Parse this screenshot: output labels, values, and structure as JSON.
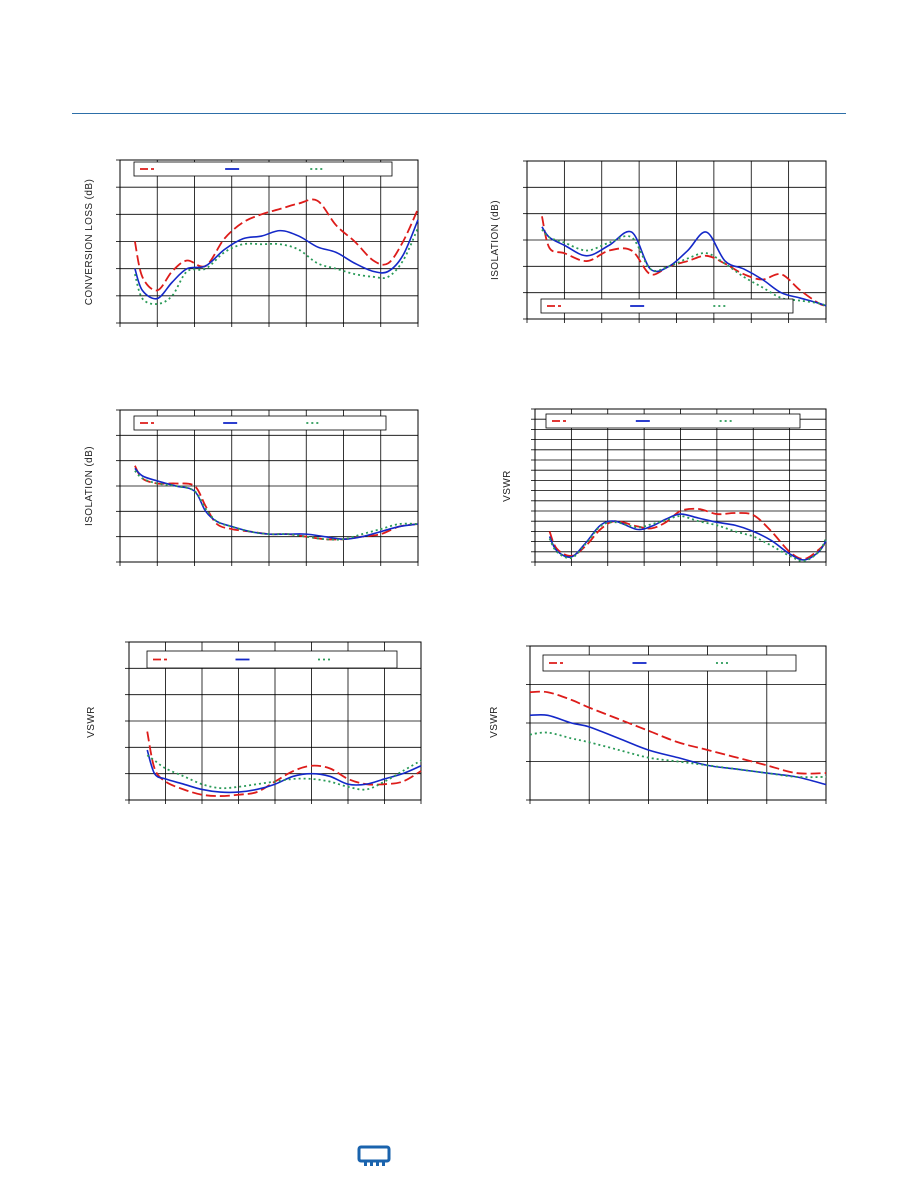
{
  "colors": {
    "series1": "#dd1c1a",
    "series2": "#1428c8",
    "series3": "#2a9a58",
    "rule": "#2d6fa8",
    "grid": "#000000"
  },
  "logo": {
    "icon": "chip-logo-icon",
    "color": "#1a63ad"
  },
  "chart_data": [
    {
      "type": "line",
      "id": "chart1",
      "ylabel": "CONVERSION LOSS (dB)",
      "xlim": [
        0,
        8
      ],
      "ylim": [
        0,
        6
      ],
      "legend": "top",
      "series": [
        {
          "style": "dashed",
          "color": "series1",
          "x": [
            0.4,
            0.6,
            1.0,
            1.4,
            1.8,
            2.3,
            2.8,
            3.3,
            3.8,
            4.3,
            4.8,
            5.3,
            5.8,
            6.3,
            6.8,
            7.2,
            7.6,
            8.0
          ],
          "y": [
            3.0,
            1.7,
            1.2,
            1.9,
            2.3,
            2.1,
            3.1,
            3.7,
            4.0,
            4.2,
            4.4,
            4.5,
            3.6,
            3.0,
            2.3,
            2.2,
            3.0,
            4.2
          ]
        },
        {
          "style": "solid",
          "color": "series2",
          "x": [
            0.4,
            0.6,
            1.0,
            1.4,
            1.8,
            2.3,
            2.8,
            3.3,
            3.8,
            4.3,
            4.8,
            5.3,
            5.8,
            6.3,
            6.8,
            7.2,
            7.6,
            8.0
          ],
          "y": [
            2.0,
            1.2,
            0.9,
            1.5,
            2.0,
            2.1,
            2.7,
            3.1,
            3.2,
            3.4,
            3.2,
            2.8,
            2.6,
            2.2,
            1.9,
            1.9,
            2.5,
            3.8
          ]
        },
        {
          "style": "dotted",
          "color": "series3",
          "x": [
            0.4,
            0.6,
            1.0,
            1.4,
            1.8,
            2.3,
            2.8,
            3.3,
            3.8,
            4.3,
            4.8,
            5.3,
            5.8,
            6.3,
            6.8,
            7.2,
            7.6,
            8.0
          ],
          "y": [
            1.8,
            0.9,
            0.7,
            1.0,
            1.9,
            2.0,
            2.6,
            2.9,
            2.9,
            2.9,
            2.7,
            2.2,
            2.0,
            1.8,
            1.7,
            1.7,
            2.3,
            3.5
          ]
        }
      ]
    },
    {
      "type": "line",
      "id": "chart2",
      "ylabel": "ISOLATION (dB)",
      "xlim": [
        0,
        8
      ],
      "ylim": [
        0,
        6
      ],
      "legend": "bottom",
      "series": [
        {
          "style": "dashed",
          "color": "series1",
          "x": [
            0.4,
            0.6,
            1.0,
            1.6,
            2.2,
            2.8,
            3.3,
            3.8,
            4.3,
            4.8,
            5.3,
            5.8,
            6.3,
            6.8,
            7.3,
            7.8,
            8.0
          ],
          "y": [
            3.9,
            2.7,
            2.5,
            2.2,
            2.6,
            2.6,
            1.7,
            2.0,
            2.2,
            2.4,
            2.1,
            1.7,
            1.5,
            1.7,
            1.1,
            0.6,
            0.5
          ]
        },
        {
          "style": "solid",
          "color": "series2",
          "x": [
            0.4,
            0.6,
            1.0,
            1.6,
            2.2,
            2.8,
            3.3,
            3.8,
            4.3,
            4.8,
            5.3,
            5.8,
            6.3,
            6.8,
            7.3,
            7.8,
            8.0
          ],
          "y": [
            3.5,
            3.1,
            2.8,
            2.4,
            2.8,
            3.3,
            1.9,
            2.0,
            2.6,
            3.3,
            2.2,
            1.9,
            1.5,
            1.0,
            0.8,
            0.6,
            0.5
          ]
        },
        {
          "style": "dotted",
          "color": "series3",
          "x": [
            0.4,
            0.6,
            1.0,
            1.6,
            2.2,
            2.8,
            3.3,
            3.8,
            4.3,
            4.8,
            5.3,
            5.8,
            6.3,
            6.8,
            7.3,
            7.8,
            8.0
          ],
          "y": [
            3.4,
            3.1,
            2.9,
            2.6,
            2.9,
            3.1,
            1.9,
            2.0,
            2.3,
            2.5,
            2.1,
            1.6,
            1.2,
            0.8,
            0.7,
            0.6,
            0.5
          ]
        }
      ]
    },
    {
      "type": "line",
      "id": "chart3",
      "ylabel": "ISOLATION (dB)",
      "xlim": [
        0,
        8
      ],
      "ylim": [
        0,
        6
      ],
      "legend": "top",
      "series": [
        {
          "style": "dashed",
          "color": "series1",
          "x": [
            0.4,
            0.6,
            1.0,
            1.5,
            2.0,
            2.3,
            2.6,
            3.0,
            3.5,
            4.0,
            4.5,
            5.0,
            5.5,
            6.0,
            6.5,
            7.0,
            7.5,
            8.0
          ],
          "y": [
            3.8,
            3.3,
            3.1,
            3.1,
            3.0,
            2.2,
            1.5,
            1.3,
            1.2,
            1.1,
            1.1,
            1.0,
            0.9,
            0.9,
            1.0,
            1.1,
            1.4,
            1.5
          ]
        },
        {
          "style": "solid",
          "color": "series2",
          "x": [
            0.4,
            0.6,
            1.0,
            1.5,
            2.0,
            2.3,
            2.6,
            3.0,
            3.5,
            4.0,
            4.5,
            5.0,
            5.5,
            6.0,
            6.5,
            7.0,
            7.5,
            8.0
          ],
          "y": [
            3.7,
            3.4,
            3.2,
            3.0,
            2.8,
            2.0,
            1.6,
            1.4,
            1.2,
            1.1,
            1.1,
            1.1,
            1.0,
            0.9,
            1.0,
            1.2,
            1.4,
            1.5
          ]
        },
        {
          "style": "dotted",
          "color": "series3",
          "x": [
            0.4,
            0.6,
            1.0,
            1.5,
            2.0,
            2.3,
            2.6,
            3.0,
            3.5,
            4.0,
            4.5,
            5.0,
            5.5,
            6.0,
            6.5,
            7.0,
            7.5,
            8.0
          ],
          "y": [
            3.6,
            3.3,
            3.1,
            3.0,
            2.8,
            2.1,
            1.6,
            1.4,
            1.2,
            1.1,
            1.1,
            1.0,
            0.9,
            0.9,
            1.1,
            1.3,
            1.5,
            1.5
          ]
        }
      ]
    },
    {
      "type": "line",
      "id": "chart4",
      "ylabel": "VSWR",
      "xlim": [
        0,
        8
      ],
      "ylim": [
        0,
        15
      ],
      "legend": "top",
      "series": [
        {
          "style": "dashed",
          "color": "series1",
          "x": [
            0.4,
            0.6,
            1.0,
            1.4,
            1.8,
            2.2,
            2.8,
            3.2,
            3.6,
            4.0,
            4.5,
            5.0,
            5.5,
            6.0,
            6.5,
            7.0,
            7.4,
            7.8,
            8.0
          ],
          "y": [
            3.0,
            1.3,
            0.6,
            1.6,
            3.2,
            4.0,
            3.5,
            3.3,
            3.9,
            5.0,
            5.2,
            4.7,
            4.8,
            4.6,
            3.0,
            1.0,
            0.3,
            1.2,
            1.9
          ]
        },
        {
          "style": "solid",
          "color": "series2",
          "x": [
            0.4,
            0.6,
            1.0,
            1.4,
            1.8,
            2.2,
            2.8,
            3.2,
            3.6,
            4.0,
            4.5,
            5.0,
            5.5,
            6.0,
            6.5,
            7.0,
            7.4,
            7.8,
            8.0
          ],
          "y": [
            2.5,
            1.1,
            0.5,
            1.9,
            3.6,
            4.0,
            3.2,
            3.5,
            4.2,
            4.7,
            4.3,
            3.9,
            3.6,
            3.0,
            2.1,
            0.8,
            0.2,
            1.0,
            2.1
          ]
        },
        {
          "style": "dotted",
          "color": "series3",
          "x": [
            0.4,
            0.6,
            1.0,
            1.4,
            1.8,
            2.2,
            2.8,
            3.2,
            3.6,
            4.0,
            4.5,
            5.0,
            5.5,
            6.0,
            6.5,
            7.0,
            7.4,
            7.8,
            8.0
          ],
          "y": [
            2.3,
            1.0,
            0.4,
            1.8,
            3.5,
            3.9,
            3.4,
            3.7,
            4.1,
            4.5,
            4.0,
            3.6,
            3.0,
            2.5,
            1.6,
            0.6,
            0.1,
            1.0,
            2.3
          ]
        }
      ]
    },
    {
      "type": "line",
      "id": "chart5",
      "ylabel": "VSWR",
      "xlim": [
        0,
        8
      ],
      "ylim": [
        0,
        6
      ],
      "legend": "top",
      "series": [
        {
          "style": "dashed",
          "color": "series1",
          "x": [
            0.5,
            0.7,
            1.0,
            1.5,
            2.0,
            2.5,
            3.0,
            3.5,
            4.0,
            4.5,
            5.0,
            5.5,
            6.0,
            6.5,
            7.0,
            7.5,
            8.0
          ],
          "y": [
            2.6,
            1.2,
            0.7,
            0.4,
            0.2,
            0.15,
            0.2,
            0.3,
            0.7,
            1.1,
            1.3,
            1.2,
            0.8,
            0.6,
            0.6,
            0.7,
            1.1
          ]
        },
        {
          "style": "solid",
          "color": "series2",
          "x": [
            0.5,
            0.7,
            1.0,
            1.5,
            2.0,
            2.5,
            3.0,
            3.5,
            4.0,
            4.5,
            5.0,
            5.5,
            6.0,
            6.5,
            7.0,
            7.5,
            8.0
          ],
          "y": [
            1.9,
            1.0,
            0.8,
            0.6,
            0.4,
            0.3,
            0.3,
            0.4,
            0.6,
            0.9,
            1.0,
            0.9,
            0.6,
            0.6,
            0.8,
            1.0,
            1.3
          ]
        },
        {
          "style": "dotted",
          "color": "series3",
          "x": [
            0.5,
            0.7,
            1.0,
            1.5,
            2.0,
            2.5,
            3.0,
            3.5,
            4.0,
            4.5,
            5.0,
            5.5,
            6.0,
            6.5,
            7.0,
            7.5,
            8.0
          ],
          "y": [
            1.7,
            1.5,
            1.2,
            0.9,
            0.6,
            0.45,
            0.5,
            0.6,
            0.7,
            0.8,
            0.8,
            0.7,
            0.5,
            0.4,
            0.7,
            1.1,
            1.5
          ]
        }
      ]
    },
    {
      "type": "line",
      "id": "chart6",
      "ylabel": "VSWR",
      "xlim": [
        0,
        5
      ],
      "ylim": [
        0,
        4
      ],
      "legend": "top",
      "series": [
        {
          "style": "dashed",
          "color": "series1",
          "x": [
            0.0,
            0.3,
            0.7,
            1.0,
            1.5,
            2.0,
            2.5,
            3.0,
            3.5,
            4.0,
            4.5,
            5.0
          ],
          "y": [
            2.8,
            2.8,
            2.6,
            2.4,
            2.1,
            1.8,
            1.5,
            1.3,
            1.1,
            0.9,
            0.7,
            0.7
          ]
        },
        {
          "style": "solid",
          "color": "series2",
          "x": [
            0.0,
            0.3,
            0.7,
            1.0,
            1.5,
            2.0,
            2.5,
            3.0,
            3.5,
            4.0,
            4.5,
            5.0
          ],
          "y": [
            2.2,
            2.2,
            2.0,
            1.9,
            1.6,
            1.3,
            1.1,
            0.9,
            0.8,
            0.7,
            0.6,
            0.4
          ]
        },
        {
          "style": "dotted",
          "color": "series3",
          "x": [
            0.0,
            0.3,
            0.7,
            1.0,
            1.5,
            2.0,
            2.5,
            3.0,
            3.5,
            4.0,
            4.5,
            5.0
          ],
          "y": [
            1.7,
            1.75,
            1.6,
            1.5,
            1.3,
            1.1,
            1.0,
            0.9,
            0.8,
            0.7,
            0.6,
            0.6
          ]
        }
      ]
    }
  ]
}
